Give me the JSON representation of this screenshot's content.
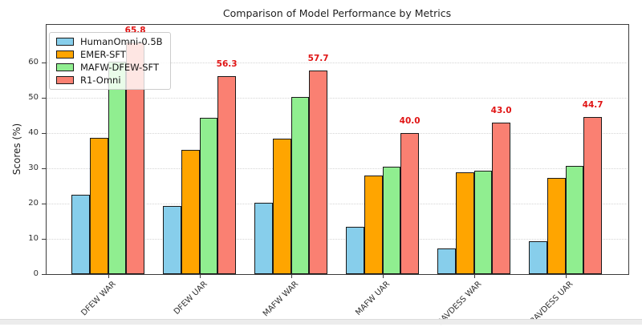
{
  "chart_data": {
    "type": "bar",
    "title": "Comparison of Model Performance by Metrics",
    "xlabel": "",
    "ylabel": "Scores (%)",
    "categories": [
      "DFEW WAR",
      "DFEW UAR",
      "MAFW WAR",
      "MAFW UAR",
      "RAVDESS WAR",
      "RAVDESS UAR"
    ],
    "series": [
      {
        "name": "HumanOmni-0.5B",
        "color": "#87CEEB",
        "values": [
          22.6,
          19.4,
          20.2,
          13.5,
          7.3,
          9.4
        ]
      },
      {
        "name": "EMER-SFT",
        "color": "#FFA500",
        "values": [
          38.7,
          35.3,
          38.4,
          28.0,
          29.0,
          27.2
        ]
      },
      {
        "name": "MAFW-DFEW-SFT",
        "color": "#90EE90",
        "values": [
          60.2,
          44.4,
          50.4,
          30.4,
          29.3,
          30.8
        ]
      },
      {
        "name": "R1-Omni",
        "color": "#FA8072",
        "values": [
          65.8,
          56.3,
          57.7,
          40.0,
          43.0,
          44.7
        ],
        "bar_labels": [
          "65.8",
          "56.3",
          "57.7",
          "40.0",
          "43.0",
          "44.7"
        ],
        "bar_label_color": "#e01414"
      }
    ],
    "yticks": [
      0,
      10,
      20,
      30,
      40,
      50,
      60
    ],
    "ylim": [
      0,
      71
    ],
    "grid": "horizontal-dotted",
    "legend_position": "upper-left",
    "plot_background": "#ffffff"
  }
}
